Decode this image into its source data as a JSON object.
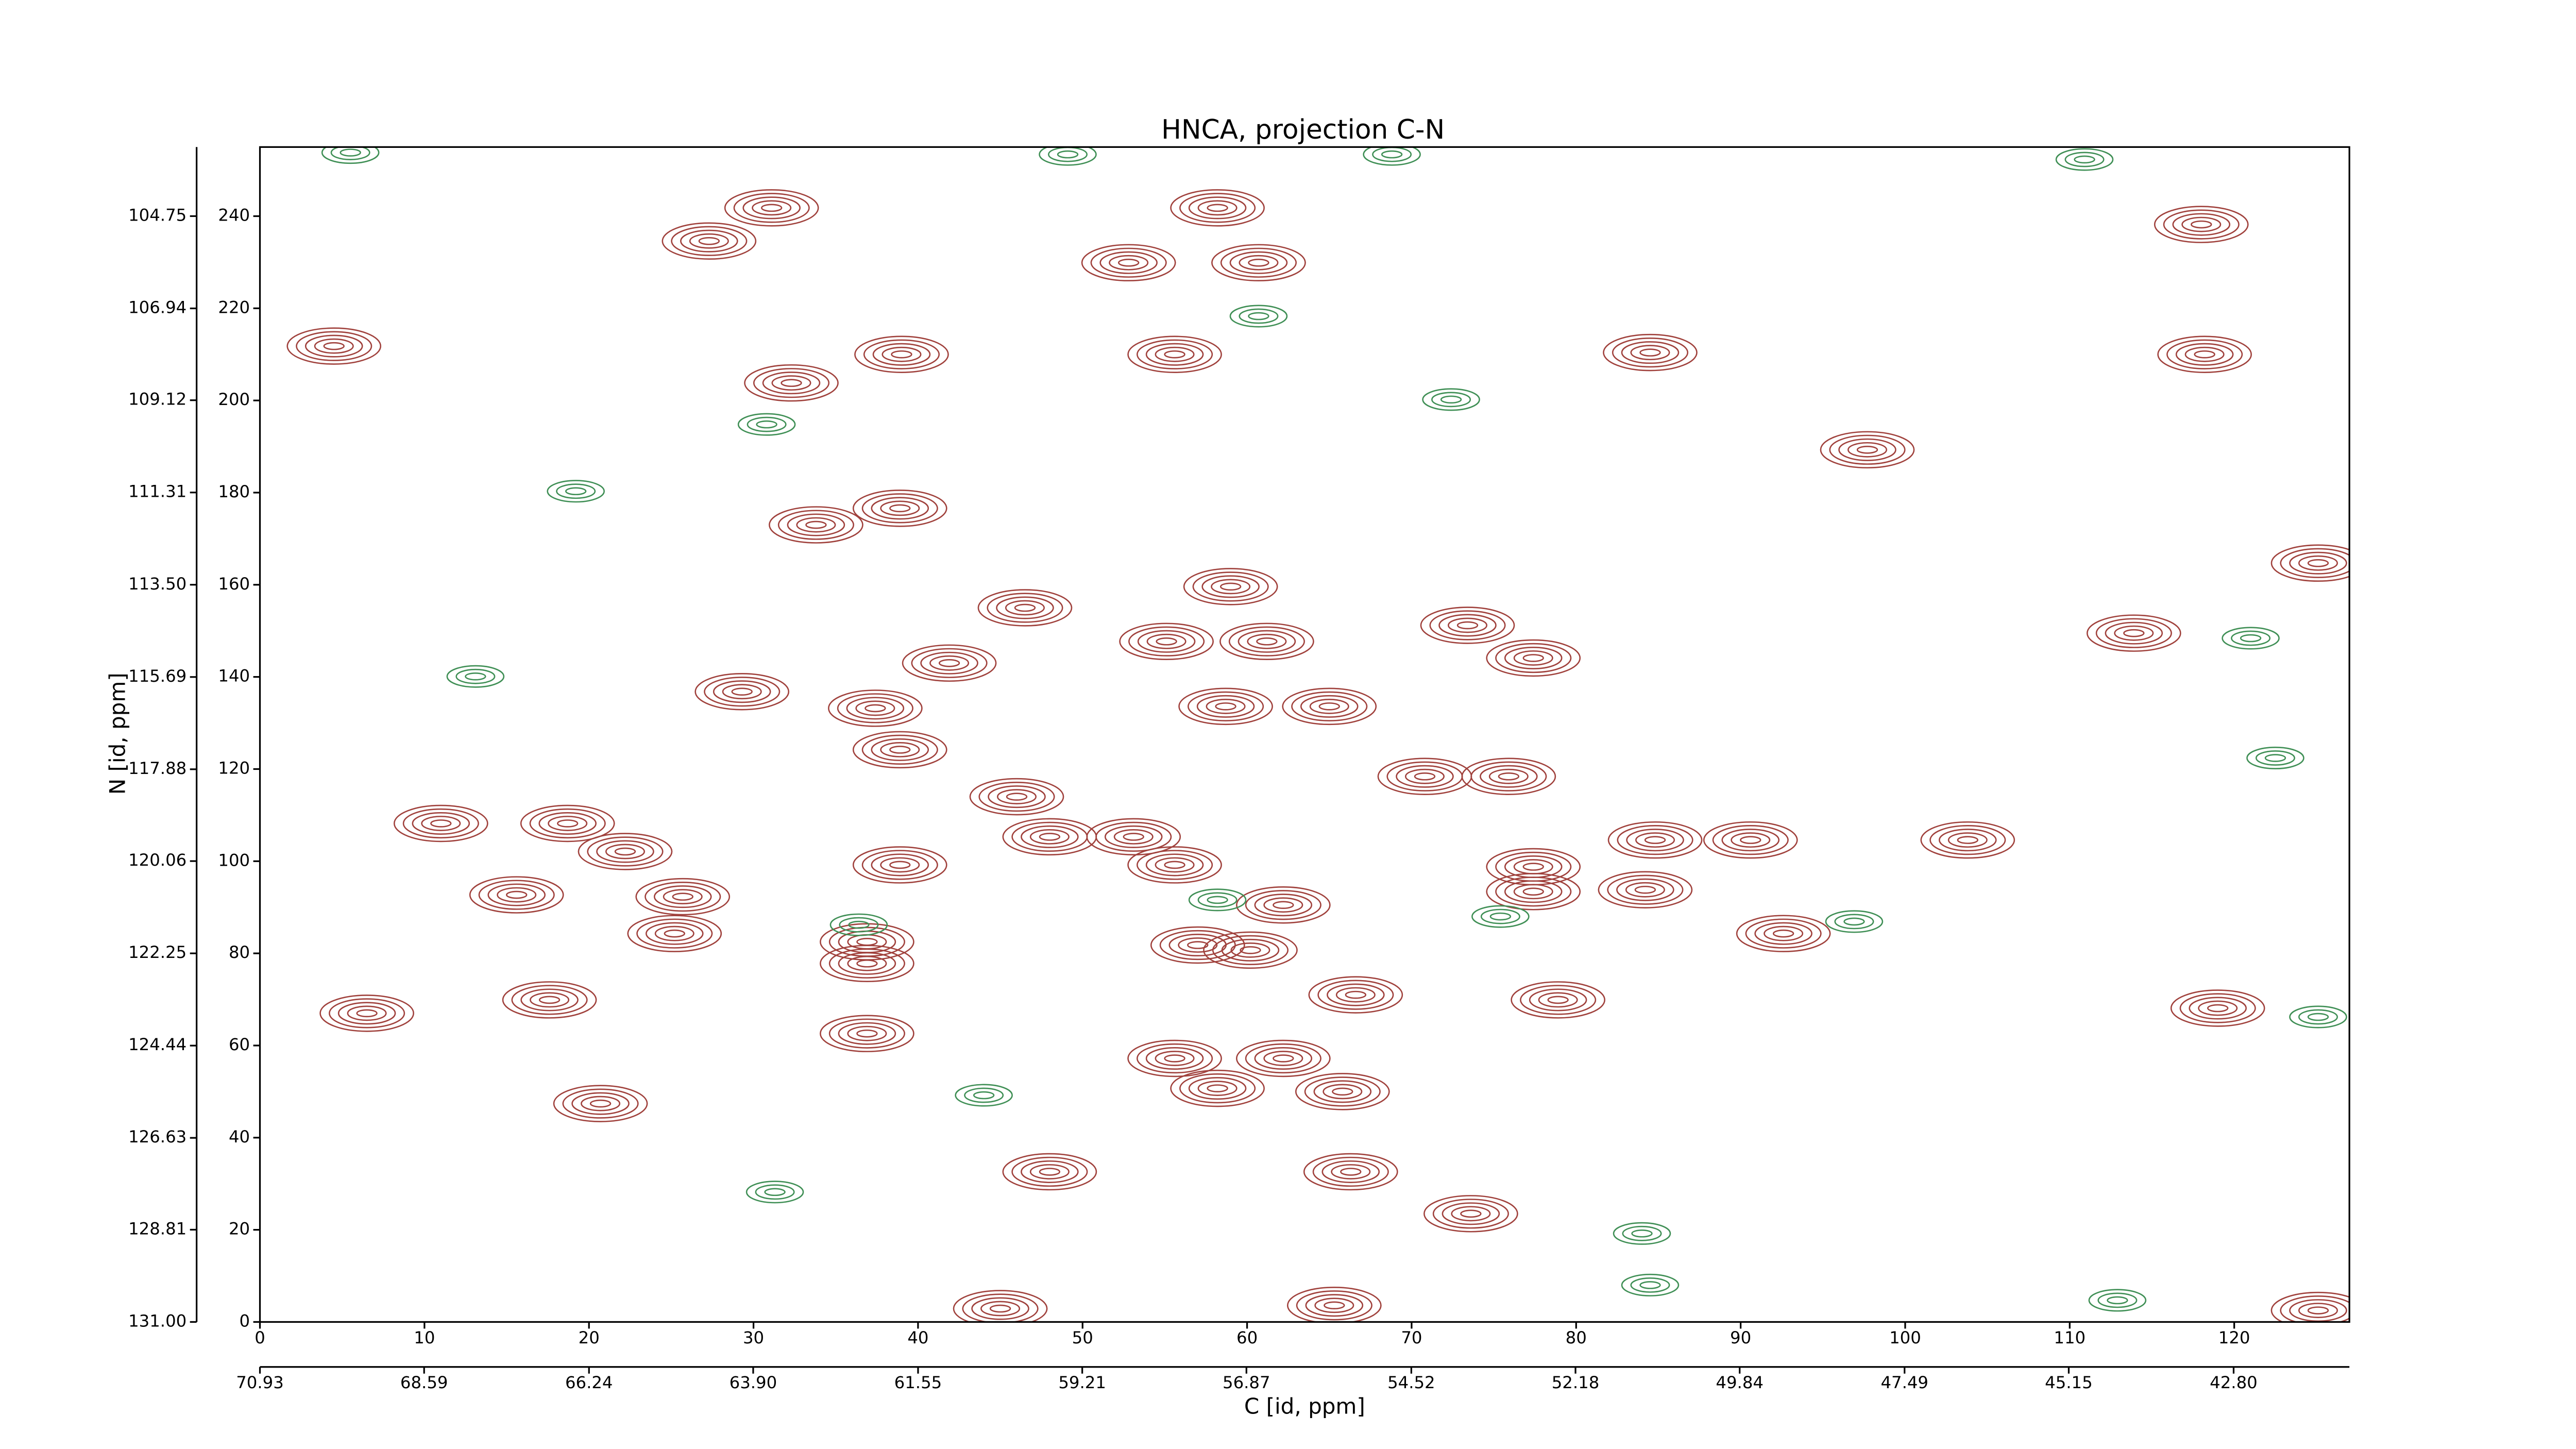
{
  "chart_data": {
    "type": "contour",
    "title": "HNCA, projection C-N",
    "xlabel": "C [id, ppm]",
    "ylabel": "N [id, ppm]",
    "xlim": [
      0,
      127
    ],
    "xticks": [
      0,
      10,
      20,
      30,
      40,
      50,
      60,
      70,
      80,
      90,
      100,
      110,
      120
    ],
    "ylim": [
      0,
      255
    ],
    "yticks": [
      0,
      20,
      40,
      60,
      80,
      100,
      120,
      140,
      160,
      180,
      200,
      220,
      240
    ],
    "x2lim": [
      70.93,
      41.15
    ],
    "x2ticks": [
      70.93,
      68.59,
      66.24,
      {
        "value": 63.9,
        "label": "63.90"
      },
      61.55,
      59.21,
      56.87,
      54.52,
      52.18,
      49.84,
      47.49,
      45.15,
      {
        "value": 42.8,
        "label": "42.80"
      }
    ],
    "y2lim": [
      131.0,
      103.11
    ],
    "y2ticks": [
      {
        "value": 131.0,
        "label": "131.00"
      },
      128.81,
      126.63,
      124.44,
      122.25,
      120.06,
      117.88,
      115.69,
      {
        "value": 113.5,
        "label": "113.50"
      },
      111.31,
      109.12,
      106.94,
      104.75
    ],
    "positive_peaks": {
      "color": "#a0413c",
      "x": [
        32.3,
        39,
        58.2,
        52.8,
        60.7,
        55.6,
        31.1,
        38.9,
        33.8,
        46.5,
        59,
        55.1,
        61.2,
        41.9,
        29.3,
        37.4,
        58.7,
        65,
        38.9,
        46,
        70.8,
        75.9,
        73.4,
        77.4,
        84.8,
        84.2,
        77.4,
        77.4,
        38.9,
        55.6,
        62.2,
        53.1,
        48,
        36.9,
        36.9,
        36.9,
        57,
        60.2,
        66.6,
        78.9,
        62.2,
        55.6,
        58.2,
        65.8,
        20.7,
        17.6,
        15.6,
        22.2,
        25.7,
        25.2,
        11,
        18.7,
        48,
        66.3,
        73.6,
        90.6,
        103.8,
        125.1,
        113.9,
        118.2,
        118,
        84.5,
        97.7,
        92.6,
        119,
        6.5,
        125.1,
        45,
        65.3,
        4.5,
        27.3
      ],
      "y": [
        203.8,
        210,
        241.8,
        229.9,
        229.9,
        210,
        241.8,
        176.6,
        173,
        155,
        159.6,
        147.7,
        147.7,
        143,
        136.8,
        133.2,
        133.6,
        133.6,
        124.2,
        114,
        118.4,
        118.4,
        151.2,
        144.1,
        104.6,
        93.8,
        98.8,
        93.4,
        99.2,
        99.2,
        90.5,
        105.3,
        105.3,
        82.5,
        77.8,
        62.6,
        81.8,
        80.7,
        71,
        69.9,
        57.2,
        57.2,
        50.7,
        50,
        47.4,
        69.9,
        92.7,
        102.1,
        92.3,
        84.3,
        108.2,
        108.2,
        32.6,
        32.6,
        23.5,
        104.6,
        104.6,
        164.7,
        149.5,
        210,
        238.2,
        210.4,
        189.3,
        84.3,
        68.1,
        67,
        2.5,
        2.9,
        3.6,
        211.8,
        234.6
      ]
    },
    "negative_peaks": {
      "color": "#3f8f55",
      "x": [
        5.5,
        49.1,
        68.8,
        110.9,
        60.7,
        30.8,
        13.1,
        121,
        122.5,
        58.2,
        96.9,
        36.4,
        44,
        125.1,
        84.5,
        112.9,
        31.3,
        84,
        75.4,
        19.2,
        72.4
      ],
      "y": [
        253.8,
        253.4,
        253.4,
        252.3,
        218.3,
        194.8,
        140.1,
        148.4,
        122.4,
        91.6,
        86.9,
        86.2,
        49.2,
        66.2,
        8,
        4.7,
        28.2,
        19.2,
        88,
        180.3,
        200.2
      ]
    }
  }
}
